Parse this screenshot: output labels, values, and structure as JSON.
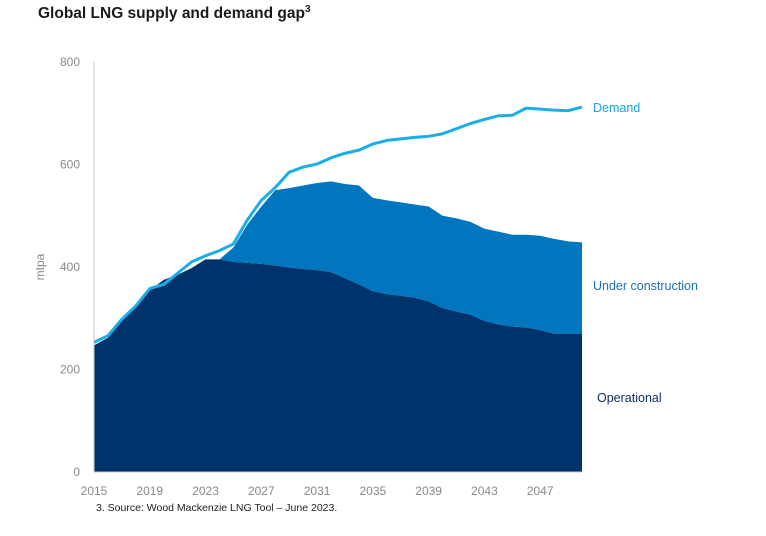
{
  "title_main": "Global LNG supply and demand gap",
  "title_sup": "3",
  "footnote": "3.  Source: Wood Mackenzie LNG Tool – June 2023.",
  "colors": {
    "operational": "#00336b",
    "under_construction": "#0076be",
    "demand": "#1aaee8",
    "demand_label": "#1aa3dc",
    "under_construction_label": "#1d6fb5",
    "operational_label": "#0a2a5c",
    "axis": "#c8c8c8",
    "tick_text": "#8a8a8a"
  },
  "chart_data": {
    "type": "area",
    "title": "Global LNG supply and demand gap",
    "xlabel": "",
    "ylabel": "mtpa",
    "xlim": [
      2015,
      2050
    ],
    "ylim": [
      0,
      800
    ],
    "y_ticks": [
      0,
      200,
      400,
      600,
      800
    ],
    "x_ticks": [
      2015,
      2019,
      2023,
      2027,
      2031,
      2035,
      2039,
      2043,
      2047
    ],
    "grid": false,
    "legend": "inline labels at right",
    "x": [
      2015,
      2016,
      2017,
      2018,
      2019,
      2020,
      2021,
      2022,
      2023,
      2024,
      2025,
      2026,
      2027,
      2028,
      2029,
      2030,
      2031,
      2032,
      2033,
      2034,
      2035,
      2036,
      2037,
      2038,
      2039,
      2040,
      2041,
      2042,
      2043,
      2044,
      2045,
      2046,
      2047,
      2048,
      2049,
      2050
    ],
    "series": [
      {
        "name": "Operational",
        "kind": "stacked-area",
        "values": [
          247,
          262,
          295,
          322,
          355,
          375,
          385,
          398,
          415,
          415,
          410,
          408,
          406,
          403,
          399,
          396,
          394,
          390,
          378,
          366,
          353,
          347,
          344,
          340,
          333,
          320,
          313,
          307,
          295,
          288,
          284,
          282,
          277,
          270,
          270,
          270
        ]
      },
      {
        "name": "Under construction",
        "kind": "stacked-area",
        "values": [
          0,
          0,
          0,
          0,
          0,
          0,
          0,
          0,
          0,
          0,
          28,
          75,
          112,
          147,
          155,
          163,
          170,
          177,
          184,
          193,
          182,
          183,
          182,
          182,
          185,
          180,
          182,
          181,
          180,
          181,
          179,
          181,
          184,
          185,
          180,
          178
        ]
      },
      {
        "name": "Demand",
        "kind": "line",
        "values": [
          253,
          266,
          298,
          324,
          358,
          366,
          388,
          410,
          422,
          432,
          445,
          492,
          530,
          555,
          585,
          595,
          601,
          613,
          622,
          628,
          640,
          647,
          650,
          653,
          655,
          660,
          670,
          680,
          688,
          695,
          696,
          710,
          708,
          706,
          705,
          712
        ]
      }
    ]
  }
}
